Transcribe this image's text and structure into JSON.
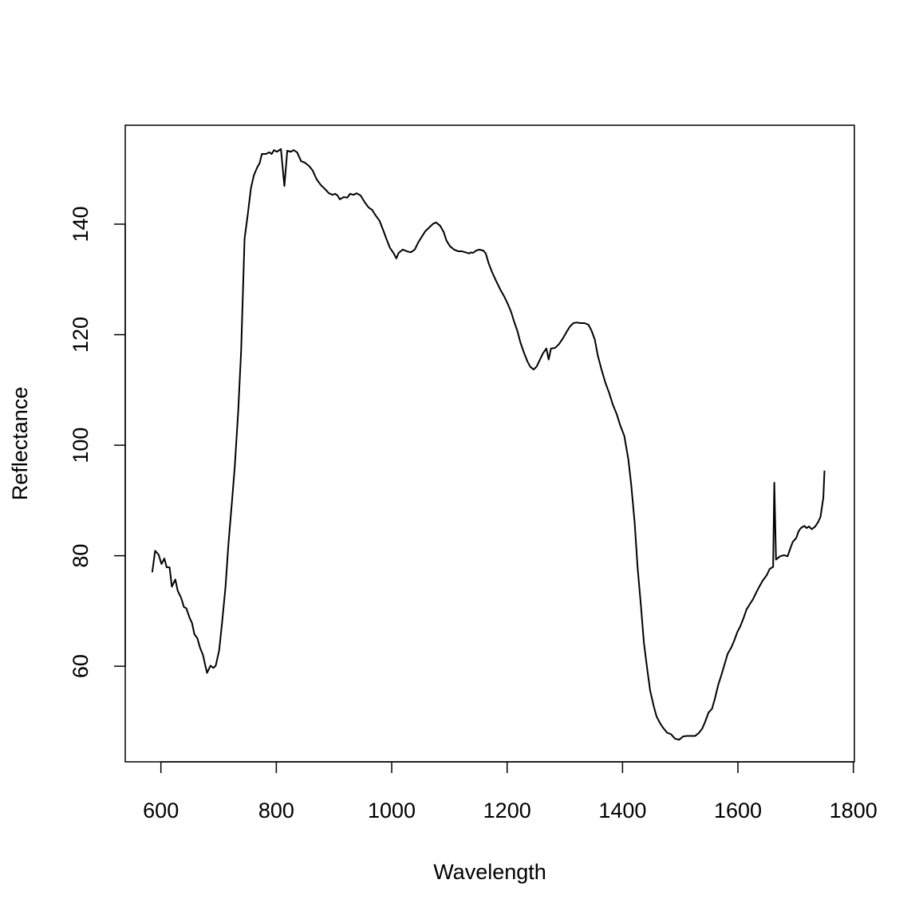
{
  "chart_data": {
    "type": "line",
    "x_label": "Wavelength",
    "y_label": "Reflectance",
    "x": [
      585,
      590,
      596,
      601,
      606,
      610,
      615,
      619,
      625,
      629,
      635,
      640,
      644,
      650,
      654,
      658,
      663,
      668,
      673,
      677,
      680,
      686,
      691,
      695,
      701,
      706,
      712,
      717,
      723,
      728,
      734,
      739,
      745,
      750,
      756,
      761,
      767,
      771,
      775,
      782,
      788,
      792,
      796,
      801,
      808,
      814,
      819,
      825,
      830,
      836,
      843,
      850,
      857,
      863,
      870,
      877,
      884,
      891,
      898,
      902,
      906,
      910,
      917,
      923,
      928,
      934,
      939,
      946,
      953,
      960,
      966,
      972,
      979,
      986,
      992,
      997,
      1003,
      1008,
      1012,
      1019,
      1026,
      1033,
      1040,
      1046,
      1052,
      1058,
      1065,
      1072,
      1077,
      1084,
      1090,
      1095,
      1101,
      1108,
      1115,
      1121,
      1128,
      1134,
      1138,
      1141,
      1146,
      1152,
      1159,
      1163,
      1168,
      1174,
      1181,
      1188,
      1195,
      1201,
      1207,
      1212,
      1218,
      1223,
      1229,
      1235,
      1240,
      1246,
      1251,
      1257,
      1262,
      1268,
      1272,
      1276,
      1283,
      1290,
      1297,
      1303,
      1309,
      1315,
      1320,
      1327,
      1334,
      1341,
      1346,
      1352,
      1357,
      1363,
      1370,
      1377,
      1383,
      1390,
      1396,
      1403,
      1410,
      1415,
      1421,
      1426,
      1432,
      1437,
      1443,
      1448,
      1454,
      1459,
      1465,
      1470,
      1477,
      1484,
      1491,
      1498,
      1505,
      1512,
      1519,
      1526,
      1532,
      1538,
      1543,
      1549,
      1555,
      1560,
      1566,
      1571,
      1577,
      1582,
      1588,
      1593,
      1599,
      1604,
      1610,
      1615,
      1621,
      1626,
      1632,
      1637,
      1643,
      1650,
      1655,
      1661,
      1663,
      1666,
      1673,
      1680,
      1686,
      1690,
      1695,
      1701,
      1705,
      1709,
      1715,
      1719,
      1723,
      1728,
      1734,
      1739,
      1743,
      1748,
      1750
    ],
    "series": [
      {
        "color": "#000000",
        "values": [
          77.0,
          80.9,
          80.2,
          78.5,
          79.5,
          77.9,
          77.9,
          74.4,
          75.7,
          73.7,
          72.4,
          70.7,
          70.5,
          68.7,
          67.8,
          65.8,
          65.1,
          63.3,
          62.0,
          60.1,
          58.8,
          60.1,
          59.7,
          60.1,
          62.9,
          67.9,
          74.4,
          82.1,
          89.6,
          96.1,
          106.2,
          117.0,
          137.4,
          141.3,
          146.5,
          148.8,
          150.3,
          151.0,
          152.7,
          152.7,
          153.0,
          152.7,
          153.4,
          153.1,
          153.6,
          146.9,
          153.3,
          153.1,
          153.4,
          153.0,
          151.4,
          151.1,
          150.5,
          149.7,
          148.1,
          147.1,
          146.4,
          145.6,
          145.3,
          145.5,
          145.2,
          144.5,
          144.9,
          144.8,
          145.5,
          145.3,
          145.6,
          145.2,
          144.0,
          143.0,
          142.6,
          141.6,
          140.6,
          138.7,
          137.0,
          135.7,
          134.8,
          133.8,
          134.8,
          135.4,
          135.1,
          134.9,
          135.4,
          136.7,
          137.7,
          138.7,
          139.4,
          140.1,
          140.3,
          139.7,
          138.6,
          137.0,
          136.0,
          135.4,
          135.1,
          135.1,
          134.9,
          134.7,
          134.9,
          134.8,
          135.2,
          135.4,
          135.2,
          134.7,
          132.9,
          131.3,
          129.7,
          128.2,
          126.9,
          125.6,
          124.1,
          122.4,
          120.6,
          118.6,
          116.8,
          115.2,
          114.2,
          113.7,
          114.2,
          115.5,
          116.6,
          117.5,
          115.5,
          117.5,
          117.6,
          118.3,
          119.4,
          120.5,
          121.5,
          122.1,
          122.2,
          122.1,
          122.1,
          121.8,
          120.8,
          119.1,
          116.3,
          113.9,
          111.4,
          109.4,
          107.4,
          105.6,
          103.6,
          101.7,
          97.5,
          92.9,
          86.0,
          78.0,
          70.8,
          64.3,
          59.3,
          55.5,
          52.8,
          50.9,
          49.7,
          48.9,
          48.0,
          47.7,
          46.9,
          46.7,
          47.3,
          47.4,
          47.4,
          47.4,
          47.9,
          48.7,
          49.9,
          51.6,
          52.3,
          54.1,
          56.7,
          58.3,
          60.4,
          62.2,
          63.3,
          64.5,
          66.2,
          67.2,
          68.8,
          70.3,
          71.3,
          72.1,
          73.4,
          74.4,
          75.5,
          76.5,
          77.6,
          78.0,
          93.2,
          79.3,
          79.9,
          80.1,
          79.9,
          81.1,
          82.5,
          83.2,
          84.4,
          85.0,
          85.4,
          85.0,
          85.3,
          84.8,
          85.3,
          86.1,
          87.0,
          90.5,
          95.4
        ]
      }
    ],
    "xlim": [
      538.2,
      1801.8
    ],
    "xticks": [
      600,
      800,
      1000,
      1200,
      1400,
      1600,
      1800
    ],
    "ylim": [
      42.7,
      157.9
    ],
    "yticks": [
      60,
      80,
      100,
      120,
      140
    ],
    "grid": false
  }
}
